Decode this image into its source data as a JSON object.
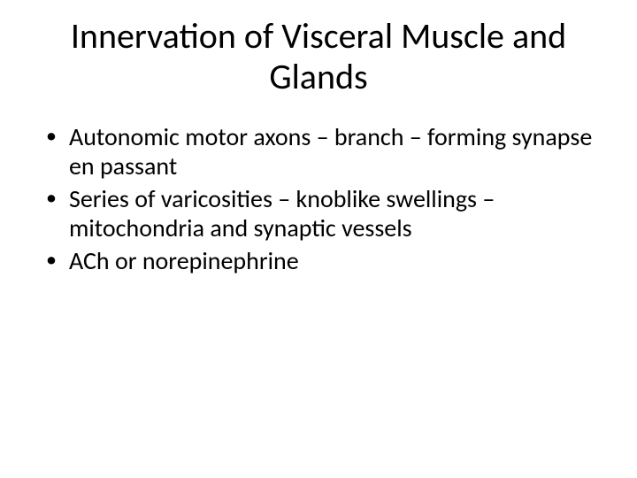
{
  "slide": {
    "title": "Innervation of Visceral Muscle and Glands",
    "bullets": [
      "Autonomic motor axons – branch – forming synapse en passant",
      "Series of varicosities – knoblike swellings – mitochondria and synaptic vessels",
      "ACh or norepinephrine"
    ]
  },
  "style": {
    "background_color": "#ffffff",
    "text_color": "#000000",
    "title_fontsize": 40,
    "body_fontsize": 28,
    "font_family": "Calibri"
  }
}
